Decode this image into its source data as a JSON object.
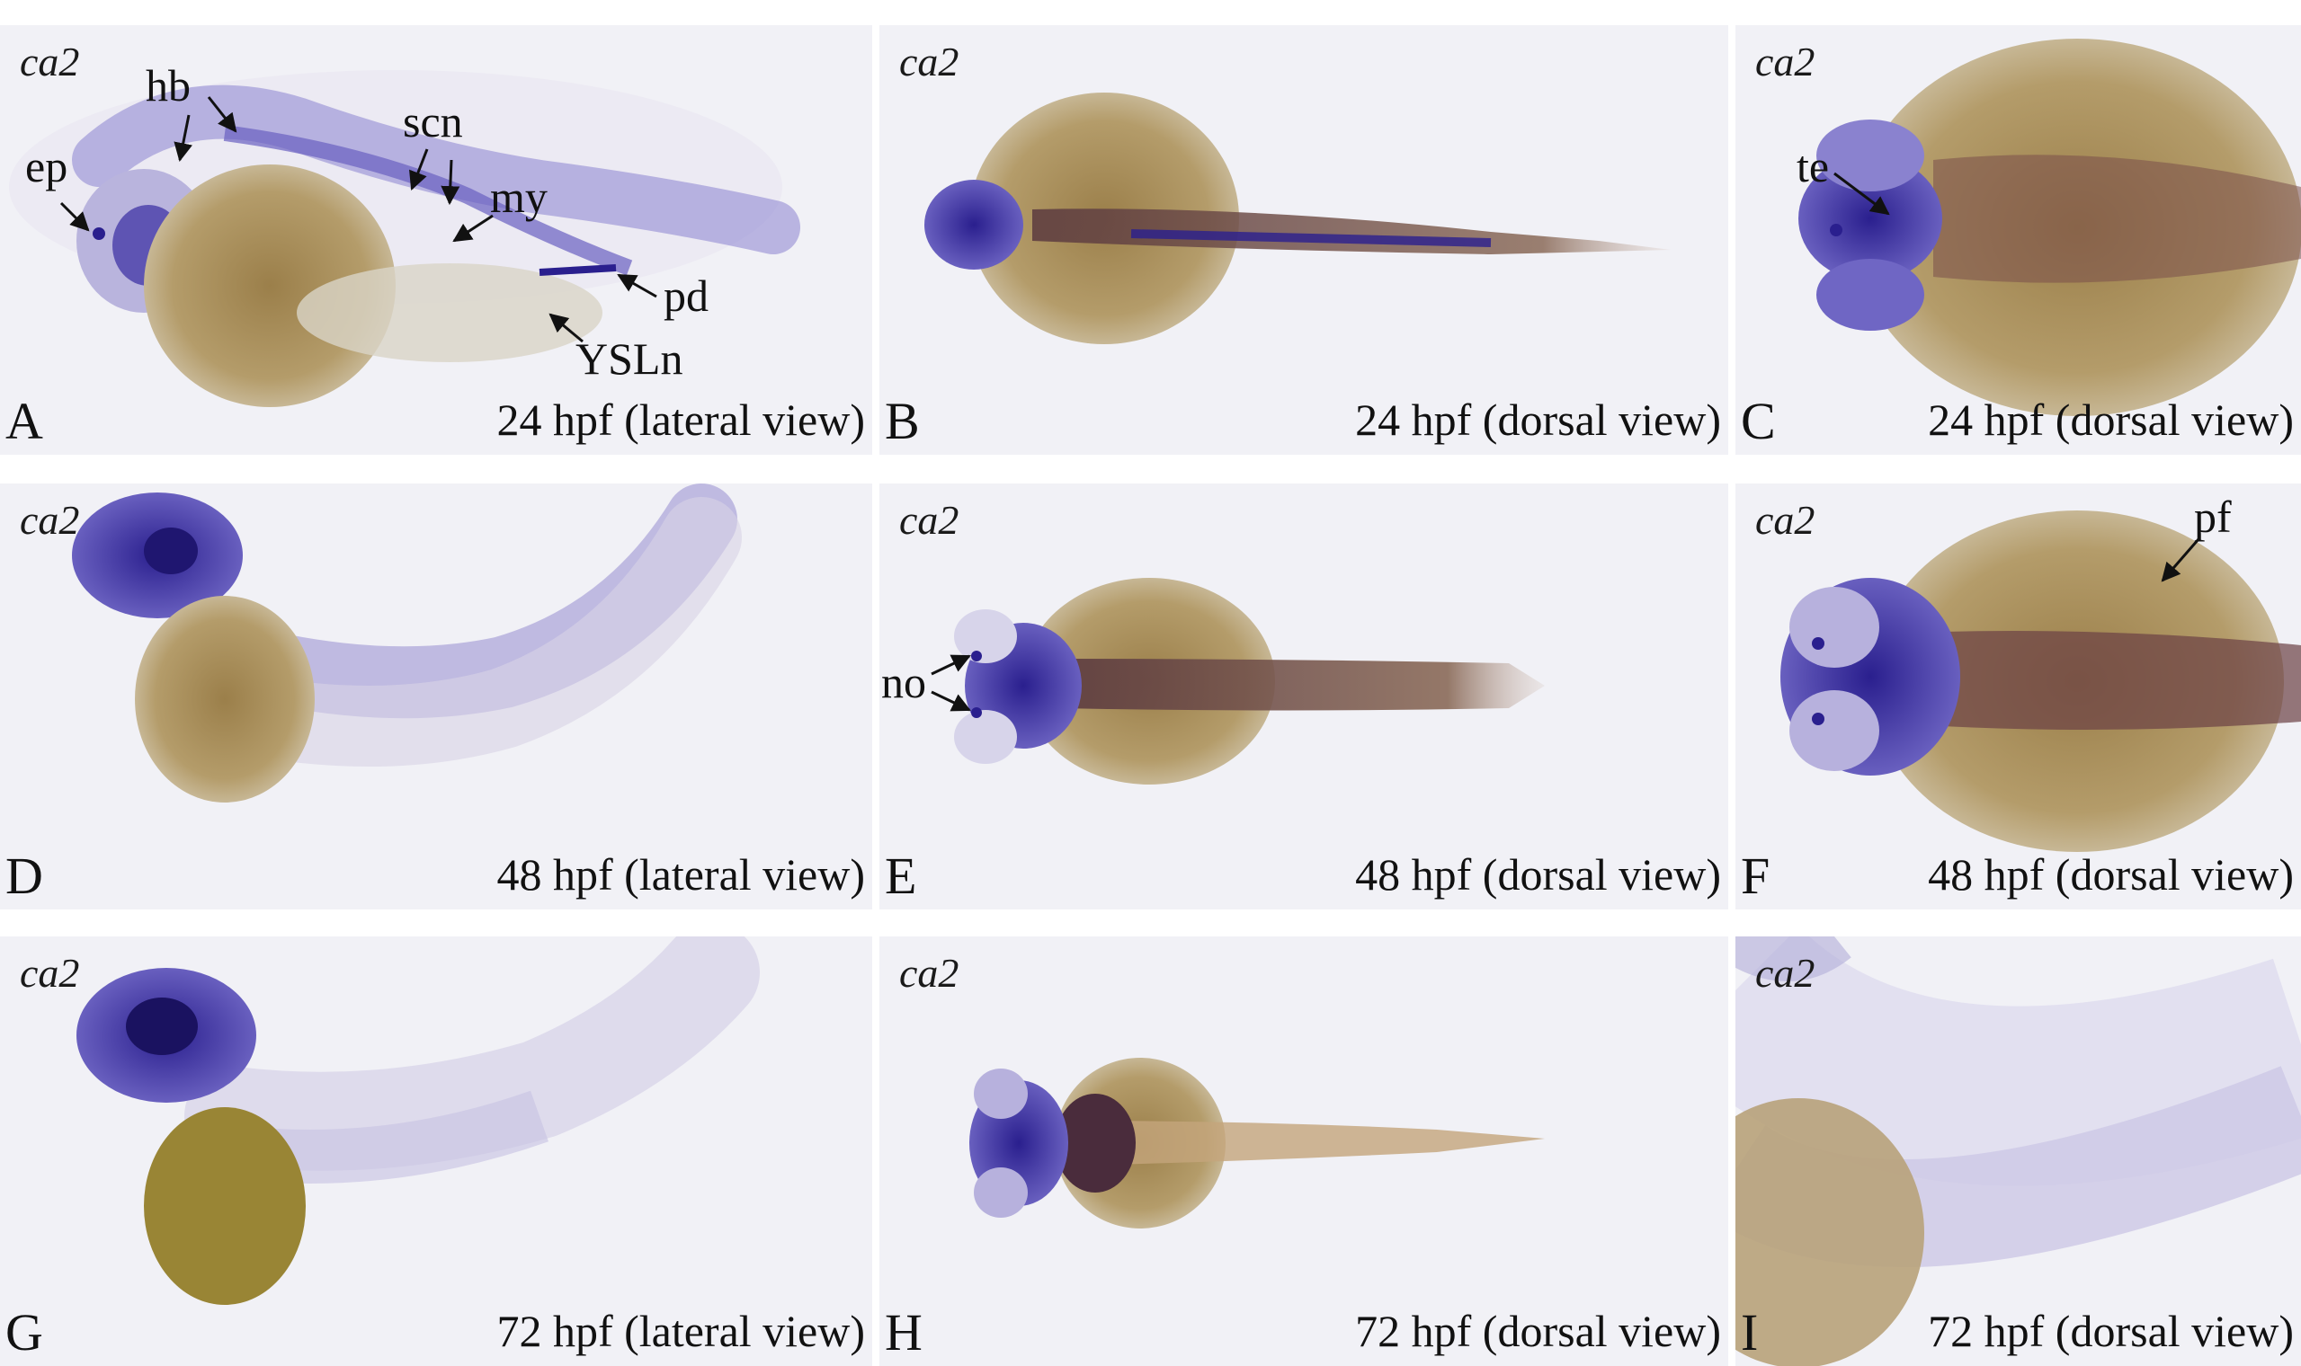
{
  "figure": {
    "gene_label": "ca2",
    "panels": [
      {
        "letter": "A",
        "caption": "24 hpf (lateral view)",
        "annotations": {
          "ep": "ep",
          "hb": "hb",
          "scn": "scn",
          "my": "my",
          "pd": "pd",
          "ysln": "YSLn"
        }
      },
      {
        "letter": "B",
        "caption": "24 hpf (dorsal view)"
      },
      {
        "letter": "C",
        "caption": "24 hpf (dorsal view)",
        "annotations": {
          "te": "te"
        }
      },
      {
        "letter": "D",
        "caption": "48 hpf (lateral view)"
      },
      {
        "letter": "E",
        "caption": "48 hpf (dorsal view)",
        "annotations": {
          "no": "no"
        }
      },
      {
        "letter": "F",
        "caption": "48 hpf (dorsal view)",
        "annotations": {
          "pf": "pf"
        }
      },
      {
        "letter": "G",
        "caption": "72 hpf (lateral view)"
      },
      {
        "letter": "H",
        "caption": "72 hpf (dorsal view)"
      },
      {
        "letter": "I",
        "caption": "72 hpf (dorsal view)"
      }
    ]
  },
  "colors": {
    "stain": "#3d2fa8",
    "yolk": "#a08a55",
    "background": "#f1f1f6"
  }
}
